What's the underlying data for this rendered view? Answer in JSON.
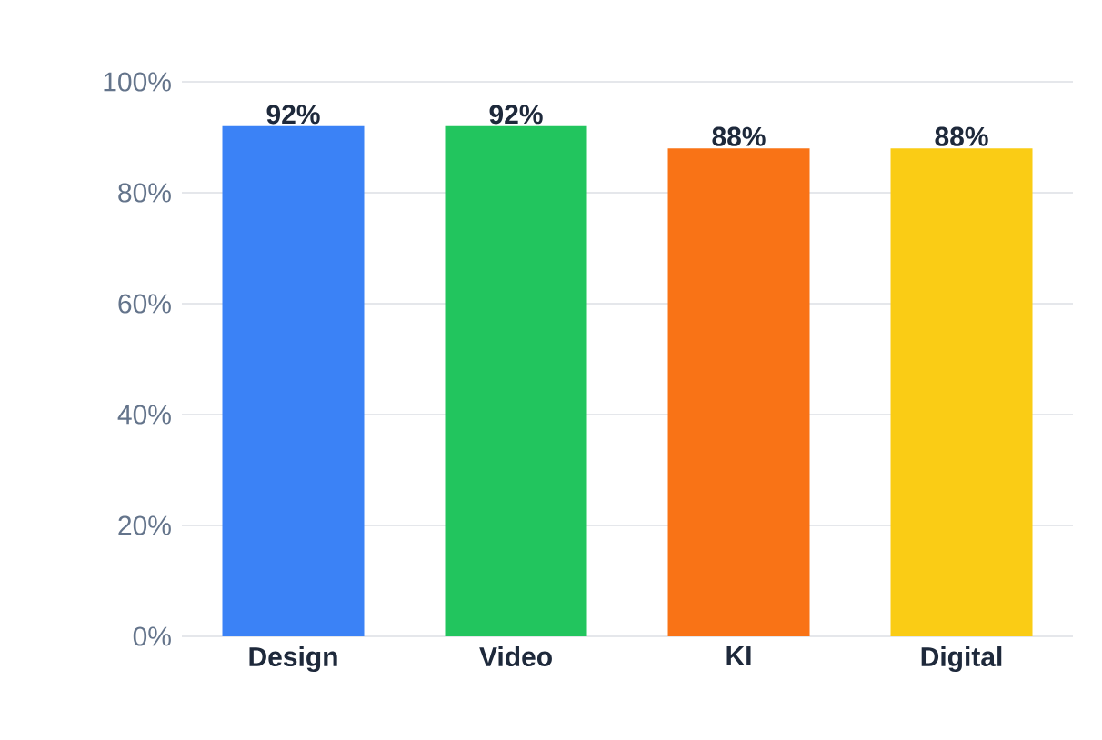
{
  "chart_data": {
    "type": "bar",
    "categories": [
      "Design",
      "Video",
      "KI",
      "Digital"
    ],
    "values": [
      92,
      92,
      88,
      88
    ],
    "colors": [
      "#3b82f6",
      "#22c55e",
      "#f97316",
      "#facc15"
    ],
    "value_labels": [
      "92%",
      "92%",
      "88%",
      "88%"
    ],
    "ylim": [
      0,
      100
    ],
    "yticks": [
      {
        "value": 0,
        "label": "0%"
      },
      {
        "value": 20,
        "label": "20%"
      },
      {
        "value": 40,
        "label": "40%"
      },
      {
        "value": 60,
        "label": "60%"
      },
      {
        "value": 80,
        "label": "80%"
      },
      {
        "value": 100,
        "label": "100%"
      }
    ],
    "grid": "y"
  }
}
